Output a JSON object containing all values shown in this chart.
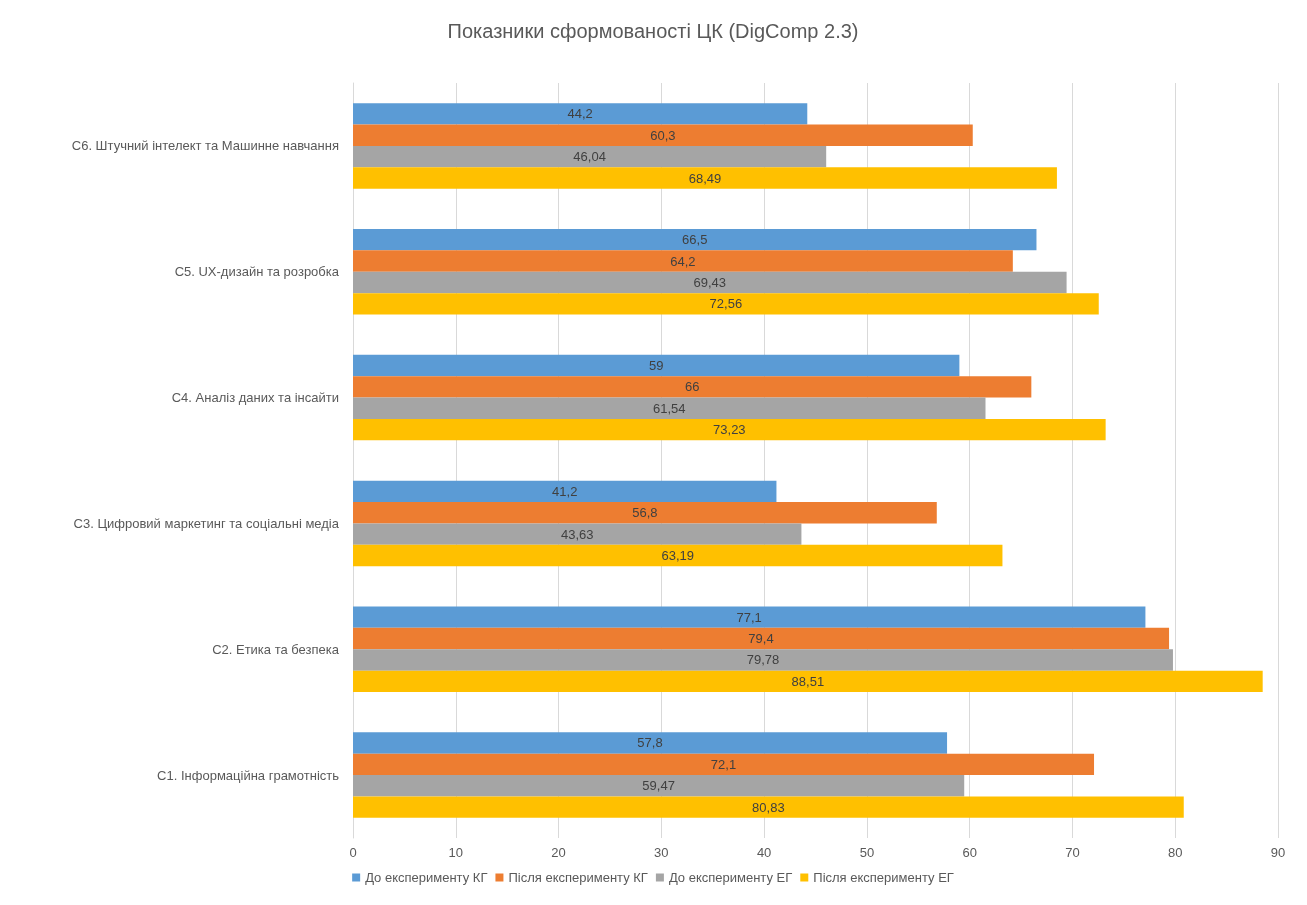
{
  "chart_data": {
    "type": "bar",
    "orientation": "horizontal",
    "title": "Показники сформованості ЦК (DigComp 2.3)",
    "categories": [
      "С6. Штучний інтелект та Машинне навчання",
      "С5. UX-дизайн та розробка",
      "С4. Аналіз даних та інсайти",
      "С3. Цифровий маркетинг та соціальні медіа",
      "С2. Етика та безпека",
      "С1. Інформаційна грамотність"
    ],
    "series": [
      {
        "name": "До експерименту КГ",
        "color": "#5b9bd5",
        "values": [
          44.2,
          66.5,
          59,
          41.2,
          77.1,
          57.8
        ],
        "value_labels": [
          "44,2",
          "66,5",
          "59",
          "41,2",
          "77,1",
          "57,8"
        ]
      },
      {
        "name": "Після експерименту КГ",
        "color": "#ed7d31",
        "values": [
          60.3,
          64.2,
          66,
          56.8,
          79.4,
          72.1
        ],
        "value_labels": [
          "60,3",
          "64,2",
          "66",
          "56,8",
          "79,4",
          "72,1"
        ]
      },
      {
        "name": "До експерименту ЕГ",
        "color": "#a5a5a5",
        "values": [
          46.04,
          69.43,
          61.54,
          43.63,
          79.78,
          59.47
        ],
        "value_labels": [
          "46,04",
          "69,43",
          "61,54",
          "43,63",
          "79,78",
          "59,47"
        ]
      },
      {
        "name": "Після експерименту ЕГ",
        "color": "#ffc000",
        "values": [
          68.49,
          72.56,
          73.23,
          63.19,
          88.51,
          80.83
        ],
        "value_labels": [
          "68,49",
          "72,56",
          "73,23",
          "63,19",
          "88,51",
          "80,83"
        ]
      }
    ],
    "xlim": [
      0,
      90
    ],
    "xticks": [
      0,
      10,
      20,
      30,
      40,
      50,
      60,
      70,
      80,
      90
    ],
    "grid": "x",
    "legend": "bottom"
  }
}
